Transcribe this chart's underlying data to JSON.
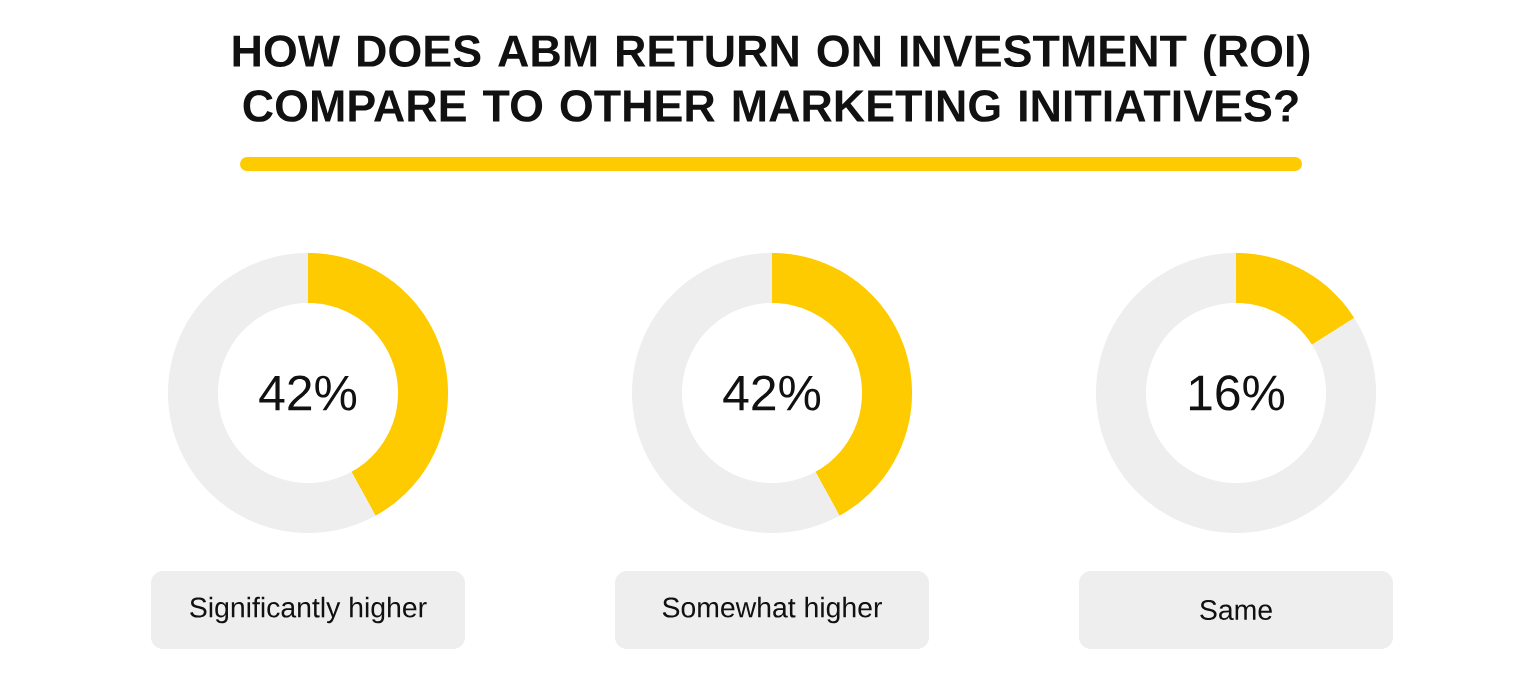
{
  "chart_data": [
    {
      "type": "donut",
      "title": "HOW DOES ABM RETURN ON INVESTMENT (ROI) COMPARE TO OTHER MARKETING INITIATIVES?",
      "xlabel": "Significantly higher",
      "categories": [
        null,
        null
      ],
      "values": [
        42,
        58
      ],
      "colors": [
        "#fecb00",
        "#eeeeee"
      ],
      "annotations": [
        "42%"
      ]
    },
    {
      "type": "donut",
      "xlabel": "Somewhat higher",
      "categories": [
        null,
        null
      ],
      "values": [
        42,
        58
      ],
      "colors": [
        "#fecb00",
        "#eeeeee"
      ],
      "annotations": [
        "42%"
      ]
    },
    {
      "type": "donut",
      "xlabel": "Same",
      "categories": [
        null,
        null
      ],
      "values": [
        16,
        84
      ],
      "colors": [
        "#fecb00",
        "#eeeeee"
      ],
      "annotations": [
        "16%"
      ]
    }
  ]
}
